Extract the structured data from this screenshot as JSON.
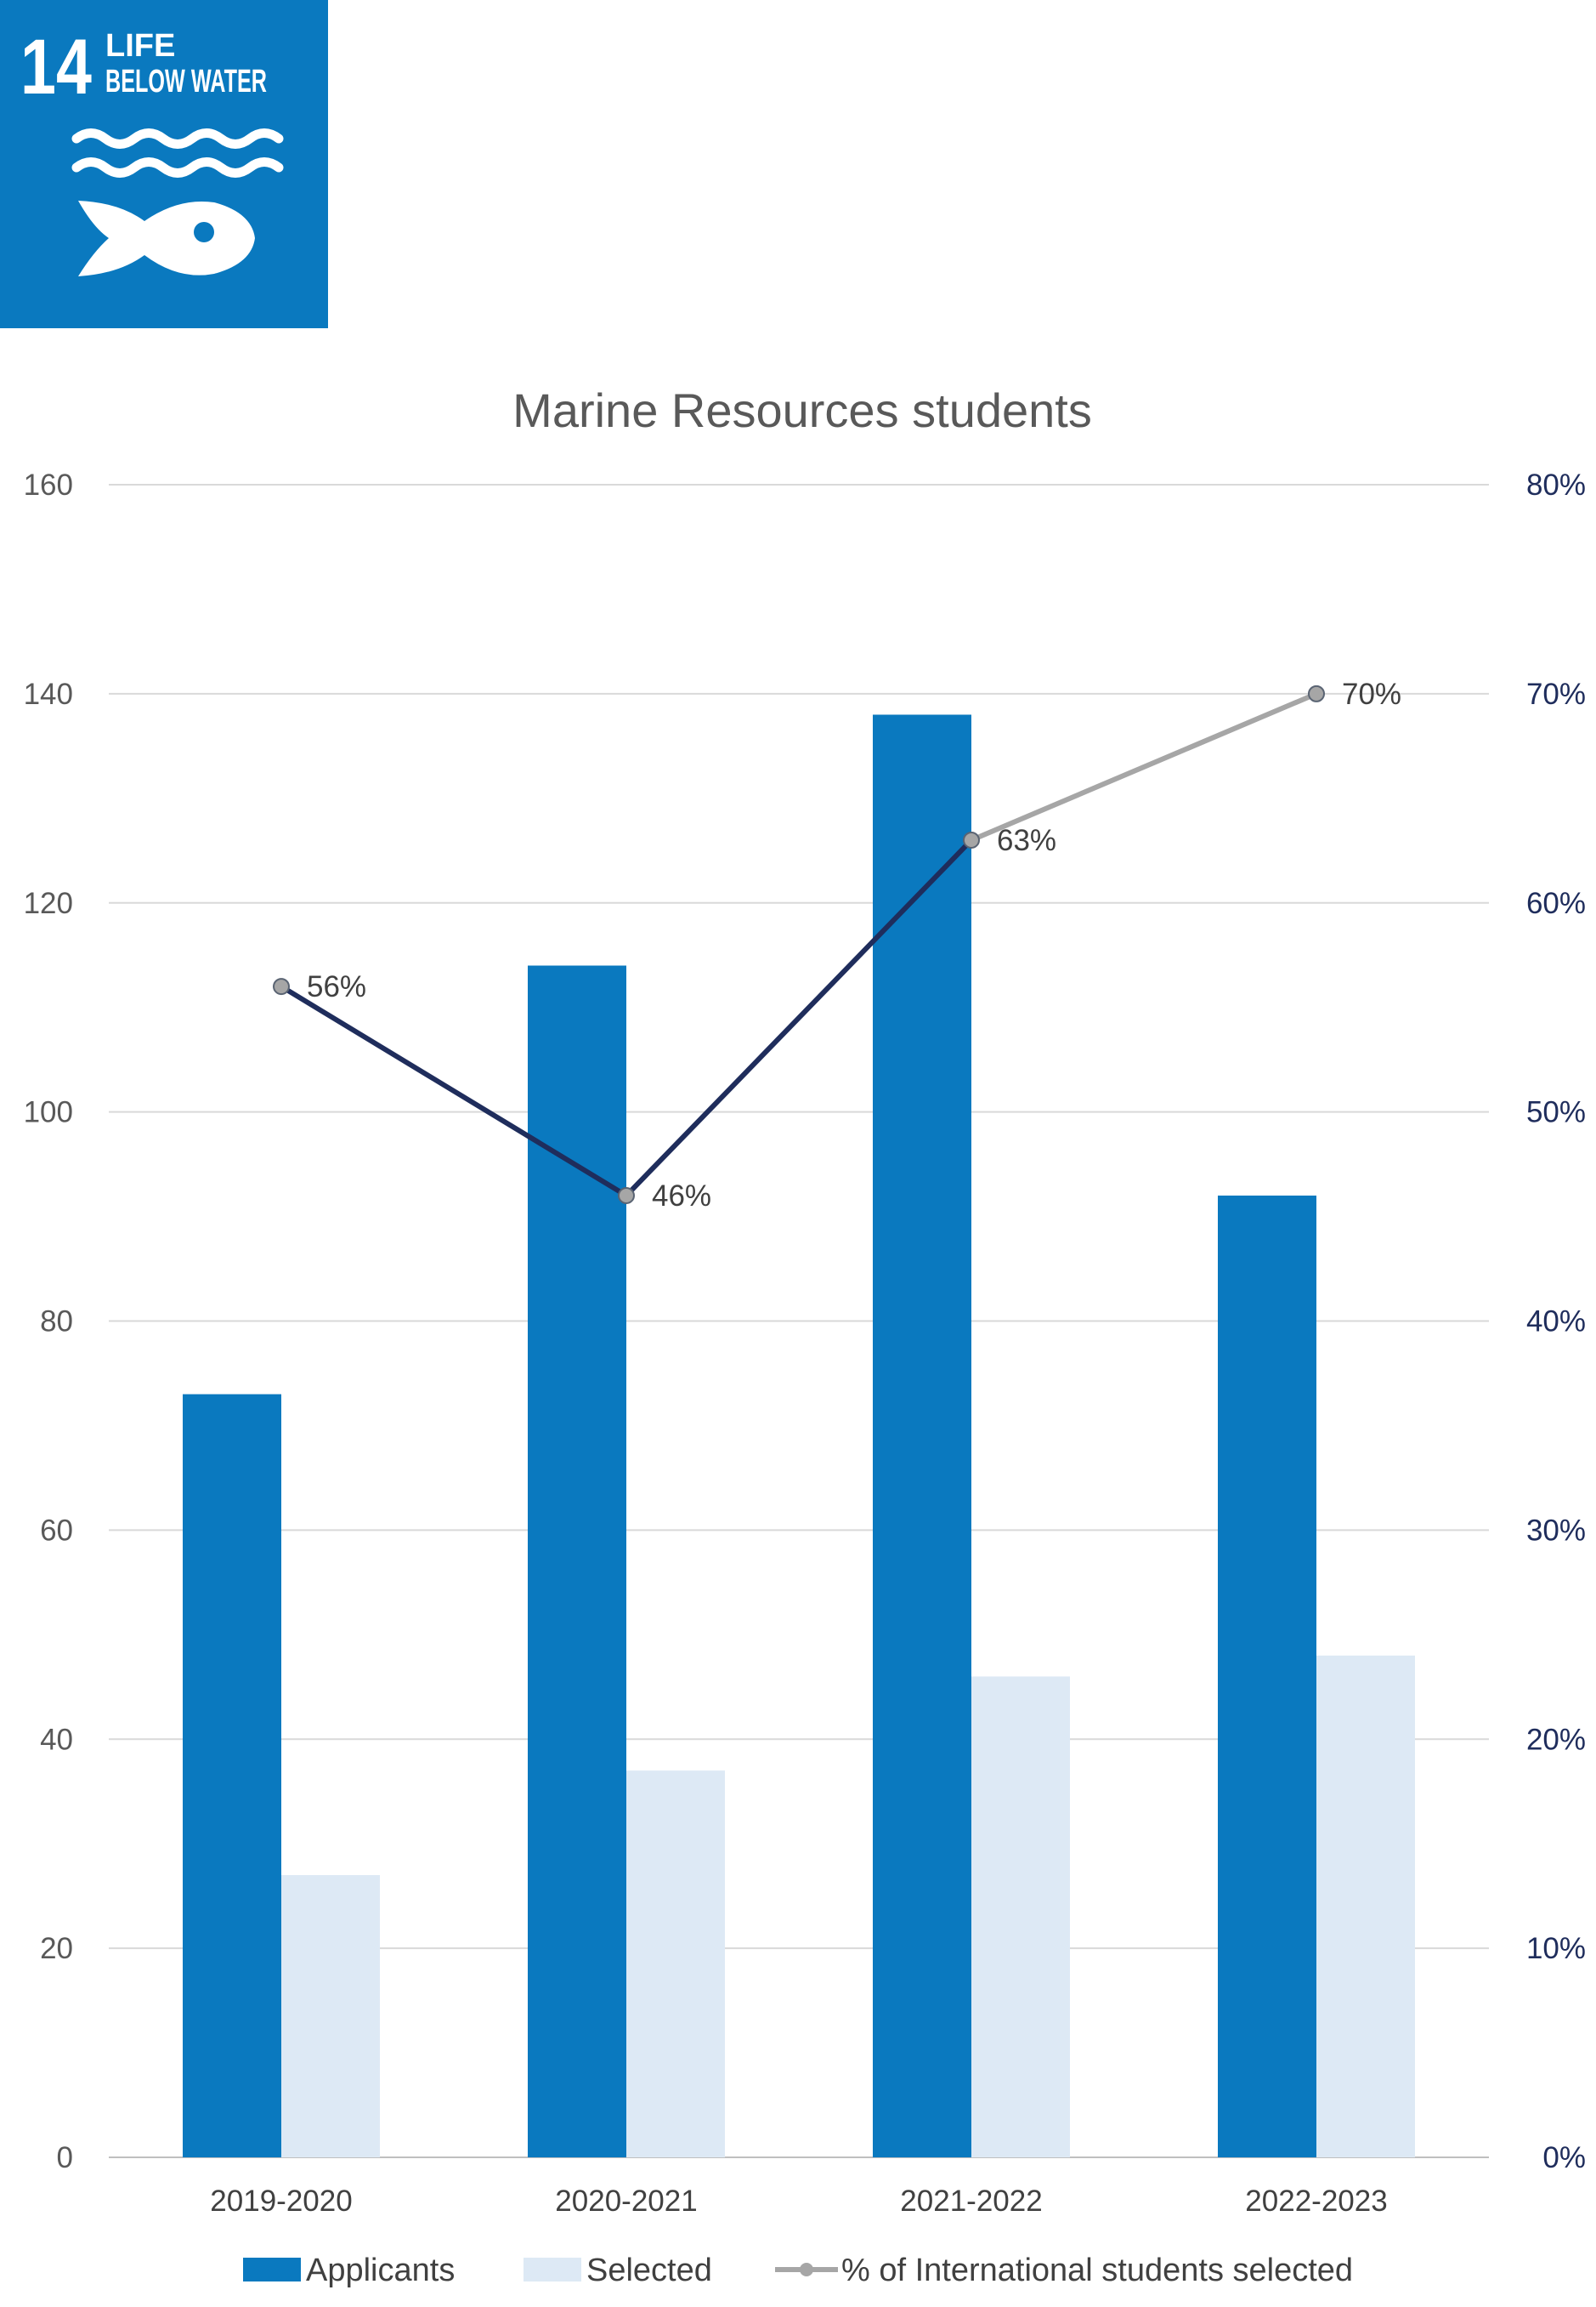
{
  "badge": {
    "number": "14",
    "line1": "LIFE",
    "line2": "BELOW WATER",
    "color": "#0a79bf",
    "icon": "fish-waves-icon"
  },
  "chart_data": {
    "type": "bar",
    "title": "Marine Resources students",
    "categories": [
      "2019-2020",
      "2020-2021",
      "2021-2022",
      "2022-2023"
    ],
    "series": [
      {
        "name": "Applicants",
        "type": "bar",
        "axis": "left",
        "color": "#0a79bf",
        "values": [
          73,
          114,
          138,
          92
        ]
      },
      {
        "name": "Selected",
        "type": "bar",
        "axis": "left",
        "color": "#dde9f5",
        "values": [
          27,
          37,
          46,
          48
        ]
      },
      {
        "name": "% of International students selected",
        "type": "line",
        "axis": "right",
        "color": "#a6a6a6",
        "segment_colors": [
          "#1f2d5c",
          "#1f2d5c",
          "#a6a6a6"
        ],
        "values": [
          56,
          46,
          63,
          70
        ],
        "labels": [
          "56%",
          "46%",
          "63%",
          "70%"
        ]
      }
    ],
    "ylim_left": [
      0,
      160
    ],
    "yticks_left": [
      "0",
      "20",
      "40",
      "60",
      "80",
      "100",
      "120",
      "140",
      "160"
    ],
    "ylim_right": [
      0,
      80
    ],
    "yticks_right": [
      "0%",
      "10%",
      "20%",
      "30%",
      "40%",
      "50%",
      "60%",
      "70%",
      "80%"
    ],
    "grid": true,
    "legend_position": "bottom"
  }
}
